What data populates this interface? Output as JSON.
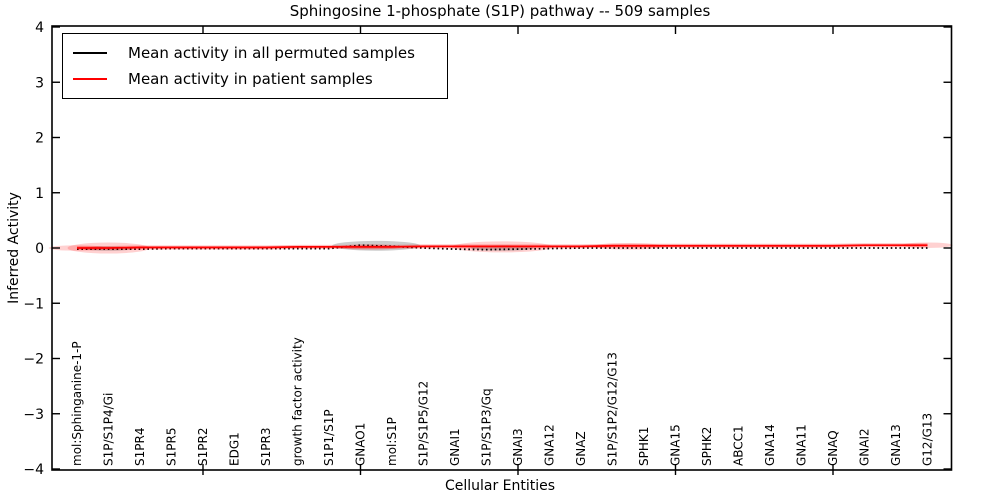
{
  "title": "Sphingosine 1-phosphate (S1P) pathway -- 509 samples",
  "sample_count": "509",
  "axes": {
    "xlabel": "Cellular Entities",
    "ylabel": "Inferred Activity"
  },
  "legend": {
    "entries": [
      {
        "label": "Mean activity in all permuted samples",
        "color": "#000000"
      },
      {
        "label": "Mean activity in patient samples",
        "color": "#ff0000"
      }
    ]
  },
  "chart_data": {
    "type": "line",
    "title": "Sphingosine 1-phosphate (S1P) pathway -- 509 samples",
    "xlabel": "Cellular Entities",
    "ylabel": "Inferred Activity",
    "ylim": [
      -4,
      4
    ],
    "grid": false,
    "legend_position": "upper left",
    "yticks": [
      4,
      3,
      2,
      1,
      0,
      -1,
      -2,
      -3,
      -4
    ],
    "ytick_labels": [
      "4",
      "3",
      "2",
      "1",
      "0",
      "−1",
      "−2",
      "−3",
      "−4"
    ],
    "xtick_positions": [
      5,
      10,
      15,
      20,
      25
    ],
    "categories": [
      "mol:Sphinganine-1-P",
      "S1P/S1P4/Gi",
      "S1PR4",
      "S1PR5",
      "S1PR2",
      "EDG1",
      "S1PR3",
      "growth factor activity",
      "S1P1/S1P",
      "GNAO1",
      "mol:S1P",
      "S1P/S1P5/G12",
      "GNAI1",
      "S1P/S1P3/Gq",
      "GNAI3",
      "GNA12",
      "GNAZ",
      "S1P/S1P2/G12/G13",
      "SPHK1",
      "GNA15",
      "SPHK2",
      "ABCC1",
      "GNA14",
      "GNA11",
      "GNAQ",
      "GNAI2",
      "GNA13",
      "G12/G13"
    ],
    "series": [
      {
        "name": "Mean activity in all permuted samples",
        "color": "#000000",
        "style": "dotted",
        "values": [
          -0.02,
          -0.02,
          -0.02,
          -0.01,
          -0.01,
          -0.01,
          -0.01,
          -0.01,
          -0.01,
          0.05,
          0.03,
          0.0,
          -0.02,
          -0.03,
          -0.02,
          -0.01,
          0.0,
          0.0,
          0.0,
          0.0,
          0.0,
          0.0,
          0.0,
          0.0,
          0.0,
          0.0,
          0.0,
          0.0
        ]
      },
      {
        "name": "Mean activity in patient samples",
        "color": "#ff0000",
        "style": "solid",
        "values": [
          0.0,
          0.0,
          0.01,
          0.01,
          0.01,
          0.01,
          0.01,
          0.02,
          0.02,
          0.02,
          0.02,
          0.03,
          0.03,
          0.03,
          0.03,
          0.03,
          0.03,
          0.04,
          0.04,
          0.04,
          0.04,
          0.04,
          0.04,
          0.04,
          0.04,
          0.05,
          0.05,
          0.05
        ]
      }
    ],
    "uncertainty_bands": [
      {
        "at": 1.0,
        "series": "patient",
        "value": 0.0,
        "half_width": 0.9,
        "half_height": 0.05
      },
      {
        "at": 2.0,
        "series": "patient",
        "value": 0.0,
        "half_width": 1.3,
        "half_height": 0.1
      },
      {
        "at": 2.0,
        "series": "permuted",
        "value": -0.01,
        "half_width": 0.8,
        "half_height": 0.04
      },
      {
        "at": 10.5,
        "series": "permuted",
        "value": 0.04,
        "half_width": 1.4,
        "half_height": 0.09
      },
      {
        "at": 10.3,
        "series": "patient",
        "value": 0.02,
        "half_width": 1.0,
        "half_height": 0.05
      },
      {
        "at": 14.5,
        "series": "patient",
        "value": 0.02,
        "half_width": 1.6,
        "half_height": 0.1
      },
      {
        "at": 14.5,
        "series": "permuted",
        "value": 0.0,
        "half_width": 1.0,
        "half_height": 0.05
      },
      {
        "at": 18.5,
        "series": "patient",
        "value": 0.03,
        "half_width": 1.1,
        "half_height": 0.06
      },
      {
        "at": 28.0,
        "series": "patient",
        "value": 0.05,
        "half_width": 0.8,
        "half_height": 0.05
      }
    ]
  }
}
